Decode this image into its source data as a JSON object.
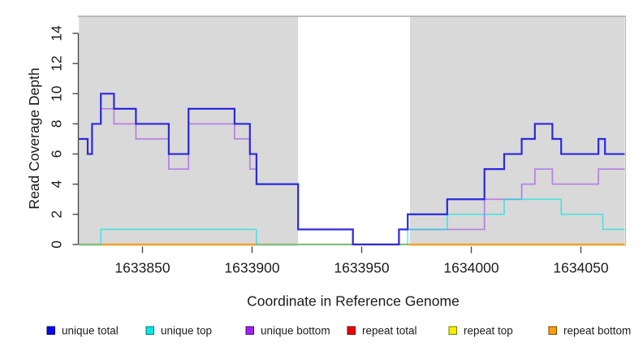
{
  "chart_data": {
    "type": "line",
    "subtype": "step-coverage-plot",
    "title": "",
    "xlabel": "Coordinate in Reference Genome",
    "ylabel": "Read Coverage Depth",
    "x_ticks": [
      1633850,
      1633900,
      1633950,
      1634000,
      1634050
    ],
    "y_ticks": [
      0,
      2,
      4,
      6,
      8,
      10,
      12,
      14
    ],
    "xlim": [
      1633821,
      1634070
    ],
    "ylim": [
      0,
      15.2
    ],
    "grid": "off",
    "legend_position": "bottom",
    "background_band_color": "#d9d9d9",
    "shaded_regions": [
      {
        "from": 1633821,
        "to": 1633921
      },
      {
        "from": 1633972,
        "to": 1634070
      }
    ],
    "series": [
      {
        "name": "repeat total",
        "color": "#d40000",
        "alpha": 1,
        "width": 1.5,
        "steps": [
          [
            1633821,
            0
          ]
        ],
        "xend": 1634070
      },
      {
        "name": "repeat top",
        "color": "#e8e800",
        "alpha": 1,
        "width": 1.5,
        "steps": [
          [
            1633821,
            0
          ]
        ],
        "xend": 1634070
      },
      {
        "name": "repeat bottom",
        "color": "#ff9d20",
        "alpha": 1,
        "width": 2.2,
        "steps": [
          [
            1633821,
            0
          ]
        ],
        "xend": 1634070
      },
      {
        "name": "unique bottom",
        "color": "#9e3ce9",
        "alpha": 0.55,
        "width": 1.8,
        "steps": [
          [
            1633821,
            7
          ],
          [
            1633825,
            6
          ],
          [
            1633827,
            8
          ],
          [
            1633831,
            9
          ],
          [
            1633837,
            8
          ],
          [
            1633847,
            7
          ],
          [
            1633862,
            5
          ],
          [
            1633871,
            8
          ],
          [
            1633892,
            7
          ],
          [
            1633899,
            5
          ],
          [
            1633902,
            4
          ],
          [
            1633921,
            1
          ],
          [
            1633946,
            0
          ],
          [
            1633967,
            1
          ],
          [
            1634006,
            3
          ],
          [
            1634023,
            4
          ],
          [
            1634029,
            5
          ],
          [
            1634037,
            4
          ],
          [
            1634058,
            5
          ]
        ],
        "xend": 1634070
      },
      {
        "name": "unique top",
        "color": "#00e4e4",
        "alpha": 0.6,
        "width": 1.8,
        "steps": [
          [
            1633821,
            0
          ],
          [
            1633831,
            1
          ],
          [
            1633902,
            0
          ],
          [
            1633971,
            1
          ],
          [
            1633989,
            2
          ],
          [
            1634015,
            3
          ],
          [
            1634041,
            2
          ],
          [
            1634060,
            1
          ]
        ],
        "xend": 1634070
      },
      {
        "name": "unique total",
        "color": "#2b29e0",
        "alpha": 1,
        "width": 2.2,
        "steps": [
          [
            1633821,
            7
          ],
          [
            1633825,
            6
          ],
          [
            1633827,
            8
          ],
          [
            1633831,
            10
          ],
          [
            1633837,
            9
          ],
          [
            1633847,
            8
          ],
          [
            1633862,
            6
          ],
          [
            1633871,
            9
          ],
          [
            1633892,
            8
          ],
          [
            1633899,
            6
          ],
          [
            1633902,
            4
          ],
          [
            1633921,
            1
          ],
          [
            1633946,
            0
          ],
          [
            1633967,
            1
          ],
          [
            1633971,
            2
          ],
          [
            1633989,
            3
          ],
          [
            1634006,
            5
          ],
          [
            1634015,
            6
          ],
          [
            1634023,
            7
          ],
          [
            1634029,
            8
          ],
          [
            1634037,
            7
          ],
          [
            1634041,
            6
          ],
          [
            1634058,
            7
          ],
          [
            1634061,
            6
          ]
        ],
        "xend": 1634070
      }
    ],
    "legend": [
      {
        "label": "unique total",
        "fill": "#0808ee",
        "stroke": "#000070"
      },
      {
        "label": "unique top",
        "fill": "#0ae6e6",
        "stroke": "#007878"
      },
      {
        "label": "unique bottom",
        "fill": "#a020f0",
        "stroke": "#500878"
      },
      {
        "label": "repeat total",
        "fill": "#ee0000",
        "stroke": "#700000"
      },
      {
        "label": "repeat top",
        "fill": "#f0f000",
        "stroke": "#787800"
      },
      {
        "label": "repeat bottom",
        "fill": "#ff9c08",
        "stroke": "#784800"
      }
    ]
  },
  "labels": {
    "x_axis_title": "Coordinate in Reference Genome",
    "y_axis_title": "Read Coverage Depth"
  },
  "colors": {
    "band_fill": "#d9d9d9",
    "band_edge": "#a8a8a8",
    "axis": "#4a4a4a",
    "text": "#1c1c1c"
  }
}
